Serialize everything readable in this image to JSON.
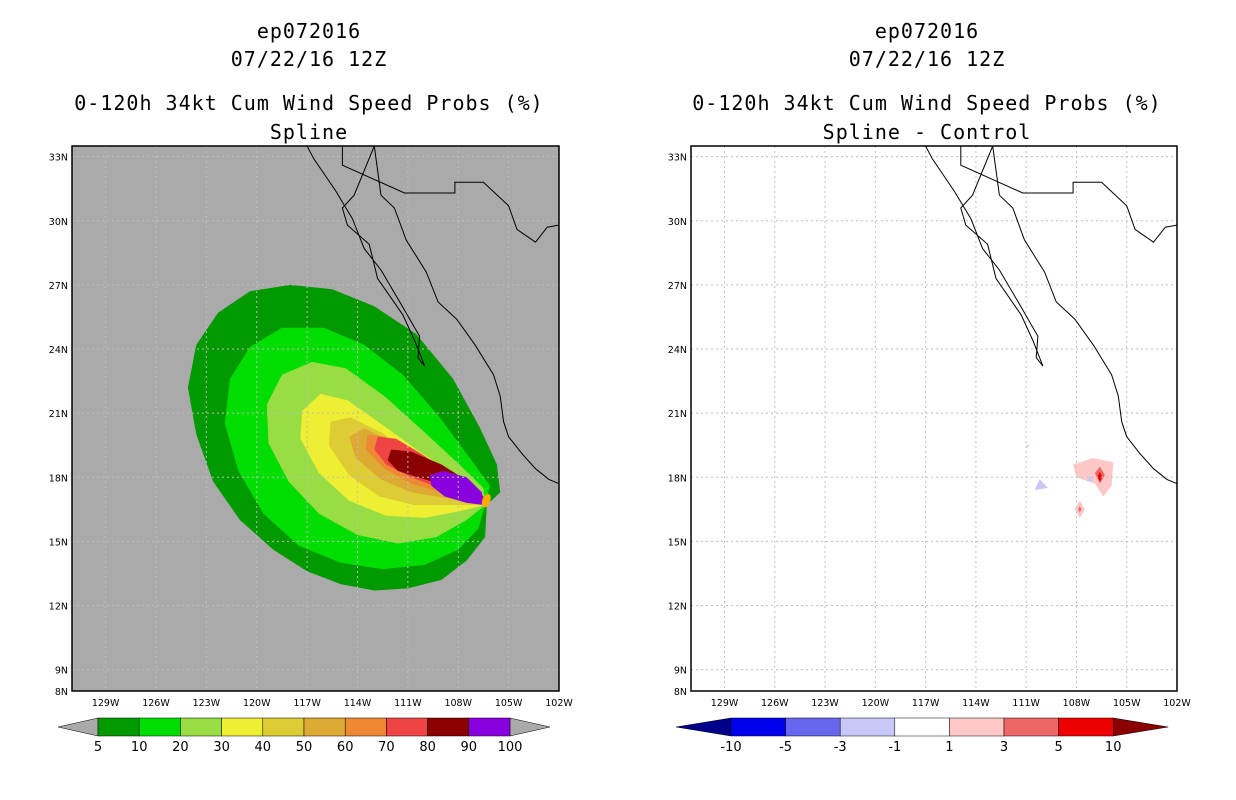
{
  "chart_data": [
    {
      "type": "map-contour",
      "storm": "ep072016",
      "datetime": "07/22/16 12Z",
      "title": "0-120h 34kt Cum Wind Speed Probs (%)",
      "subtitle": "Spline",
      "lon_ticks": [
        "129W",
        "126W",
        "123W",
        "120W",
        "117W",
        "114W",
        "111W",
        "108W",
        "105W",
        "102W"
      ],
      "lat_ticks": [
        "33N",
        "30N",
        "27N",
        "24N",
        "21N",
        "18N",
        "15N",
        "12N",
        "9N",
        "8N"
      ],
      "lon_range": [
        -131,
        -102
      ],
      "lat_range": [
        8,
        33.5
      ],
      "background_color": "#aaaaaa",
      "colorbar": {
        "colors": [
          "#009900",
          "#00dd00",
          "#99dd44",
          "#eeee33",
          "#ddcc33",
          "#ddaa33",
          "#ee8833",
          "#ee4444",
          "#8b0000",
          "#8800dd"
        ],
        "labels": [
          "5",
          "10",
          "20",
          "30",
          "40",
          "50",
          "60",
          "70",
          "80",
          "90",
          "100"
        ],
        "end_colors": [
          "#aaaaaa",
          "#aaaaaa"
        ]
      },
      "storm_center_lon": -106.3,
      "storm_center_lat": 16.7,
      "contours": [
        {
          "level": 5,
          "color": "#009900",
          "points": [
            [
              -106.3,
              16.7
            ],
            [
              -106.4,
              15.2
            ],
            [
              -107.5,
              14.1
            ],
            [
              -109.0,
              13.2
            ],
            [
              -111.0,
              12.8
            ],
            [
              -113.0,
              12.7
            ],
            [
              -115.0,
              13.0
            ],
            [
              -117.0,
              13.6
            ],
            [
              -119.0,
              14.6
            ],
            [
              -121.0,
              16.0
            ],
            [
              -122.6,
              17.8
            ],
            [
              -123.6,
              20.0
            ],
            [
              -124.1,
              22.2
            ],
            [
              -123.6,
              24.2
            ],
            [
              -122.3,
              25.7
            ],
            [
              -120.4,
              26.7
            ],
            [
              -118.0,
              27.0
            ],
            [
              -115.5,
              26.8
            ],
            [
              -113.0,
              26.0
            ],
            [
              -110.5,
              24.7
            ],
            [
              -108.3,
              22.6
            ],
            [
              -106.7,
              20.3
            ],
            [
              -105.7,
              18.6
            ],
            [
              -105.5,
              17.3
            ]
          ]
        },
        {
          "level": 10,
          "color": "#00dd00",
          "points": [
            [
              -106.4,
              16.7
            ],
            [
              -106.8,
              15.6
            ],
            [
              -108.0,
              14.6
            ],
            [
              -110.0,
              13.9
            ],
            [
              -112.5,
              13.7
            ],
            [
              -115.0,
              14.0
            ],
            [
              -117.5,
              14.8
            ],
            [
              -119.6,
              16.3
            ],
            [
              -121.1,
              18.3
            ],
            [
              -121.9,
              20.5
            ],
            [
              -121.6,
              22.6
            ],
            [
              -120.4,
              24.1
            ],
            [
              -118.5,
              25.0
            ],
            [
              -116.0,
              25.0
            ],
            [
              -113.6,
              24.2
            ],
            [
              -111.3,
              22.8
            ],
            [
              -109.2,
              20.9
            ],
            [
              -107.4,
              19.0
            ],
            [
              -106.1,
              17.6
            ]
          ]
        },
        {
          "level": 20,
          "color": "#99dd44",
          "points": [
            [
              -106.4,
              16.7
            ],
            [
              -107.5,
              16.0
            ],
            [
              -109.3,
              15.2
            ],
            [
              -111.6,
              14.9
            ],
            [
              -114.0,
              15.3
            ],
            [
              -116.3,
              16.3
            ],
            [
              -118.1,
              17.8
            ],
            [
              -119.3,
              19.6
            ],
            [
              -119.4,
              21.4
            ],
            [
              -118.5,
              22.8
            ],
            [
              -116.7,
              23.4
            ],
            [
              -114.7,
              23.1
            ],
            [
              -112.4,
              21.8
            ],
            [
              -110.0,
              20.1
            ],
            [
              -107.8,
              18.5
            ],
            [
              -106.5,
              17.5
            ]
          ]
        },
        {
          "level": 30,
          "color": "#eeee33",
          "points": [
            [
              -106.4,
              16.7
            ],
            [
              -108.0,
              16.4
            ],
            [
              -110.0,
              16.1
            ],
            [
              -112.3,
              16.2
            ],
            [
              -114.5,
              16.9
            ],
            [
              -116.3,
              18.2
            ],
            [
              -117.4,
              19.8
            ],
            [
              -117.3,
              21.1
            ],
            [
              -116.2,
              21.9
            ],
            [
              -114.6,
              21.6
            ],
            [
              -112.6,
              20.5
            ],
            [
              -110.3,
              19.2
            ],
            [
              -108.0,
              18.0
            ],
            [
              -106.5,
              17.2
            ]
          ]
        },
        {
          "level": 40,
          "color": "#ddcc33",
          "points": [
            [
              -106.4,
              16.7
            ],
            [
              -108.4,
              16.7
            ],
            [
              -110.6,
              16.7
            ],
            [
              -112.7,
              17.1
            ],
            [
              -114.5,
              18.1
            ],
            [
              -115.7,
              19.5
            ],
            [
              -115.6,
              20.6
            ],
            [
              -114.4,
              20.8
            ],
            [
              -112.6,
              20.1
            ],
            [
              -110.5,
              19.0
            ],
            [
              -108.3,
              17.9
            ],
            [
              -106.6,
              17.1
            ]
          ]
        },
        {
          "level": 50,
          "color": "#ddaa33",
          "points": [
            [
              -106.4,
              16.7
            ],
            [
              -108.5,
              17.0
            ],
            [
              -110.8,
              17.3
            ],
            [
              -112.6,
              17.9
            ],
            [
              -114.1,
              18.9
            ],
            [
              -114.5,
              19.9
            ],
            [
              -113.6,
              20.3
            ],
            [
              -112.0,
              19.7
            ],
            [
              -110.0,
              18.7
            ],
            [
              -108.0,
              17.7
            ],
            [
              -106.6,
              17.1
            ]
          ]
        },
        {
          "level": 60,
          "color": "#ee8833",
          "points": [
            [
              -106.4,
              16.7
            ],
            [
              -108.6,
              17.2
            ],
            [
              -110.8,
              17.7
            ],
            [
              -112.4,
              18.4
            ],
            [
              -113.5,
              19.3
            ],
            [
              -113.4,
              20.0
            ],
            [
              -112.4,
              19.9
            ],
            [
              -110.8,
              19.1
            ],
            [
              -108.8,
              18.0
            ],
            [
              -106.6,
              17.1
            ]
          ]
        },
        {
          "level": 70,
          "color": "#ee4444",
          "points": [
            [
              -106.4,
              16.7
            ],
            [
              -108.8,
              17.4
            ],
            [
              -110.8,
              18.0
            ],
            [
              -112.3,
              18.6
            ],
            [
              -113.0,
              19.3
            ],
            [
              -112.8,
              19.9
            ],
            [
              -111.7,
              19.8
            ],
            [
              -110.2,
              19.1
            ],
            [
              -108.3,
              18.1
            ],
            [
              -106.6,
              17.1
            ]
          ]
        },
        {
          "level": 80,
          "color": "#8b0000",
          "points": [
            [
              -106.4,
              16.7
            ],
            [
              -108.3,
              17.5
            ],
            [
              -110.0,
              17.9
            ],
            [
              -111.6,
              18.3
            ],
            [
              -112.2,
              18.8
            ],
            [
              -112.0,
              19.3
            ],
            [
              -110.8,
              19.2
            ],
            [
              -109.0,
              18.6
            ],
            [
              -107.4,
              17.8
            ],
            [
              -106.5,
              17.1
            ]
          ]
        },
        {
          "level": 90,
          "color": "#8800dd",
          "points": [
            [
              -106.4,
              16.7
            ],
            [
              -107.5,
              16.8
            ],
            [
              -108.8,
              17.1
            ],
            [
              -109.6,
              17.6
            ],
            [
              -109.7,
              18.1
            ],
            [
              -108.9,
              18.3
            ],
            [
              -107.5,
              18.0
            ],
            [
              -106.6,
              17.3
            ]
          ]
        }
      ],
      "storm_core_color": "#ffaa00"
    },
    {
      "type": "map-contour",
      "storm": "ep072016",
      "datetime": "07/22/16 12Z",
      "title": "0-120h 34kt Cum Wind Speed Probs (%)",
      "subtitle": "Spline - Control",
      "lon_ticks": [
        "129W",
        "126W",
        "123W",
        "120W",
        "117W",
        "114W",
        "111W",
        "108W",
        "105W",
        "102W"
      ],
      "lat_ticks": [
        "33N",
        "30N",
        "27N",
        "24N",
        "21N",
        "18N",
        "15N",
        "12N",
        "9N",
        "8N"
      ],
      "lon_range": [
        -131,
        -102
      ],
      "lat_range": [
        8,
        33.5
      ],
      "background_color": "#ffffff",
      "colorbar": {
        "colors": [
          "#0000ee",
          "#6666ee",
          "#c8c8f8",
          "#ffffff",
          "#ffc8c8",
          "#ee6666",
          "#ee0000"
        ],
        "labels": [
          "-10",
          "-5",
          "-3",
          "-1",
          "1",
          "3",
          "5",
          "10"
        ],
        "end_colors": [
          "#00008b",
          "#8b0000"
        ]
      },
      "blobs": [
        {
          "lon": -107.0,
          "lat": 18.0,
          "level": 3,
          "color": "#ffc8c8",
          "points": [
            [
              -108.2,
              18.6
            ],
            [
              -107.0,
              18.9
            ],
            [
              -105.8,
              18.7
            ],
            [
              -105.9,
              17.6
            ],
            [
              -106.4,
              17.1
            ],
            [
              -106.9,
              17.7
            ],
            [
              -108.0,
              18.0
            ]
          ]
        },
        {
          "lon": -106.6,
          "lat": 17.9,
          "level": 5,
          "color": "#ee6666",
          "points": [
            [
              -106.9,
              18.2
            ],
            [
              -106.6,
              18.5
            ],
            [
              -106.3,
              18.1
            ],
            [
              -106.6,
              17.7
            ]
          ]
        },
        {
          "lon": -106.6,
          "lat": 18.0,
          "level": 10,
          "color": "#ee0000",
          "points": [
            [
              -106.75,
              18.05
            ],
            [
              -106.6,
              18.25
            ],
            [
              -106.45,
              18.0
            ],
            [
              -106.6,
              17.8
            ]
          ]
        },
        {
          "lon": -107.8,
          "lat": 16.4,
          "level": 3,
          "color": "#ffc8c8",
          "points": [
            [
              -108.1,
              16.5
            ],
            [
              -107.8,
              16.9
            ],
            [
              -107.5,
              16.5
            ],
            [
              -107.8,
              16.1
            ]
          ]
        },
        {
          "lon": -107.8,
          "lat": 16.5,
          "level": 5,
          "color": "#ee6666",
          "points": [
            [
              -107.9,
              16.5
            ],
            [
              -107.8,
              16.65
            ],
            [
              -107.7,
              16.5
            ],
            [
              -107.8,
              16.35
            ]
          ]
        },
        {
          "lon": -110.0,
          "lat": 17.6,
          "level": -3,
          "color": "#c8c8f8",
          "points": [
            [
              -110.5,
              17.4
            ],
            [
              -110.2,
              17.9
            ],
            [
              -109.7,
              17.5
            ]
          ]
        },
        {
          "lon": -107.2,
          "lat": 17.9,
          "level": -3,
          "color": "#c8c8f8",
          "points": [
            [
              -107.4,
              17.8
            ],
            [
              -107.2,
              18.1
            ],
            [
              -107.0,
              17.8
            ]
          ]
        },
        {
          "lon": -110.9,
          "lat": 19.4,
          "level": 1,
          "color": "#ffc8c8",
          "points": [
            [
              -111.0,
              19.4
            ],
            [
              -110.9,
              19.55
            ],
            [
              -110.8,
              19.4
            ]
          ]
        }
      ]
    }
  ],
  "panels": [
    {
      "line1": "ep072016",
      "line2": "07/22/16 12Z",
      "line3": "0-120h 34kt Cum Wind Speed Probs (%)",
      "line4": "Spline"
    },
    {
      "line1": "ep072016",
      "line2": "07/22/16 12Z",
      "line3": "0-120h 34kt Cum Wind Speed Probs (%)",
      "line4": "Spline - Control"
    }
  ],
  "coastline": [
    [
      [
        -113.0,
        33.5
      ],
      [
        -114.2,
        31.2
      ],
      [
        -114.9,
        30.6
      ],
      [
        -114.6,
        29.8
      ],
      [
        -113.3,
        28.9
      ],
      [
        -112.8,
        27.3
      ],
      [
        -111.3,
        25.6
      ],
      [
        -110.6,
        24.4
      ],
      [
        -110.0,
        23.2
      ],
      [
        -110.4,
        23.6
      ],
      [
        -110.3,
        24.6
      ],
      [
        -111.4,
        26.1
      ],
      [
        -112.6,
        27.7
      ],
      [
        -113.6,
        28.7
      ],
      [
        -114.3,
        30.1
      ],
      [
        -115.3,
        31.4
      ],
      [
        -116.6,
        32.9
      ],
      [
        -117.0,
        33.5
      ]
    ],
    [
      [
        -112.6,
        31.2
      ],
      [
        -111.8,
        30.6
      ],
      [
        -111.1,
        29.1
      ],
      [
        -109.9,
        27.6
      ],
      [
        -109.2,
        26.2
      ],
      [
        -108.1,
        25.4
      ],
      [
        -107.0,
        24.2
      ],
      [
        -105.9,
        22.8
      ],
      [
        -105.5,
        21.8
      ],
      [
        -105.3,
        20.6
      ],
      [
        -105.0,
        19.9
      ],
      [
        -104.2,
        19.1
      ],
      [
        -103.4,
        18.4
      ],
      [
        -102.6,
        17.9
      ],
      [
        -102.0,
        17.7
      ]
    ],
    [
      [
        -113.0,
        33.5
      ],
      [
        -112.6,
        31.2
      ]
    ]
  ],
  "borders": [
    [
      [
        -114.9,
        33.5
      ],
      [
        -114.9,
        32.6
      ],
      [
        -111.2,
        31.3
      ],
      [
        -108.2,
        31.3
      ],
      [
        -108.2,
        31.8
      ],
      [
        -106.5,
        31.8
      ],
      [
        -105.0,
        30.7
      ],
      [
        -104.5,
        29.6
      ],
      [
        -103.4,
        29.0
      ],
      [
        -102.7,
        29.7
      ],
      [
        -102.0,
        29.8
      ]
    ]
  ]
}
